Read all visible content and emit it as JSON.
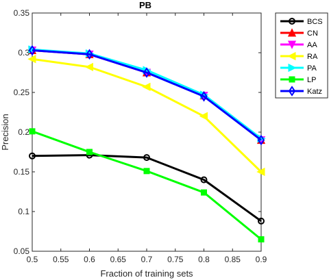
{
  "chart_data": {
    "type": "line",
    "title": "PB",
    "xlabel": "Fraction of training sets",
    "ylabel": "Precision",
    "xlim": [
      0.5,
      0.9
    ],
    "ylim": [
      0.05,
      0.35
    ],
    "x": [
      0.5,
      0.6,
      0.7,
      0.8,
      0.9
    ],
    "xticks": [
      "0.5",
      "0.55",
      "0.6",
      "0.65",
      "0.7",
      "0.75",
      "0.8",
      "0.85",
      "0.9"
    ],
    "yticks": [
      "0.05",
      "0.1",
      "0.15",
      "0.2",
      "0.25",
      "0.3",
      "0.35"
    ],
    "grid": false,
    "legend_position": "top-right",
    "series": [
      {
        "name": "BCS",
        "color": "#000000",
        "marker": "circle",
        "values": [
          0.17,
          0.171,
          0.168,
          0.14,
          0.088
        ]
      },
      {
        "name": "CN",
        "color": "#ff0000",
        "marker": "triangle-up",
        "values": [
          0.303,
          0.298,
          0.275,
          0.246,
          0.19
        ]
      },
      {
        "name": "AA",
        "color": "#ff00ff",
        "marker": "triangle-down",
        "values": [
          0.303,
          0.298,
          0.275,
          0.246,
          0.19
        ]
      },
      {
        "name": "RA",
        "color": "#ffff00",
        "marker": "triangle-left",
        "values": [
          0.292,
          0.282,
          0.257,
          0.22,
          0.15
        ]
      },
      {
        "name": "PA",
        "color": "#00ffff",
        "marker": "triangle-right",
        "values": [
          0.304,
          0.299,
          0.278,
          0.247,
          0.192
        ]
      },
      {
        "name": "LP",
        "color": "#00ff00",
        "marker": "square",
        "values": [
          0.201,
          0.175,
          0.151,
          0.124,
          0.065
        ]
      },
      {
        "name": "Katz",
        "color": "#0000ff",
        "marker": "diamond",
        "values": [
          0.303,
          0.298,
          0.275,
          0.245,
          0.19
        ]
      }
    ]
  }
}
